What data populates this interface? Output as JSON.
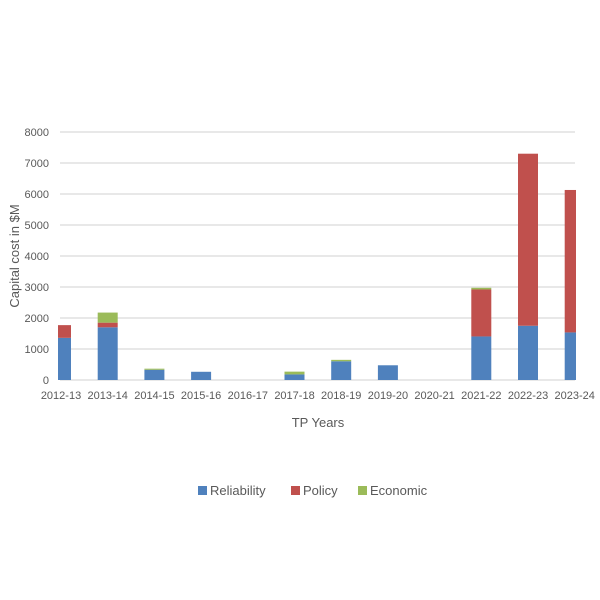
{
  "chart_data": {
    "type": "bar",
    "stacked": true,
    "title": "",
    "xlabel": "TP Years",
    "ylabel": "Capital cost in $M",
    "ylim": [
      0,
      8000
    ],
    "yticks": [
      0,
      1000,
      2000,
      3000,
      4000,
      5000,
      6000,
      7000,
      8000
    ],
    "grid": true,
    "legend_position": "bottom",
    "categories": [
      "2012-13",
      "2013-14",
      "2014-15",
      "2015-16",
      "2016-17",
      "2017-18",
      "2018-19",
      "2019-20",
      "2020-21",
      "2021-22",
      "2022-23",
      "2023-24"
    ],
    "series": [
      {
        "name": "Reliability",
        "color": "#4f81bd",
        "values": [
          1360,
          1700,
          330,
          265,
          0,
          180,
          605,
          475,
          0,
          1405,
          1750,
          1535
        ]
      },
      {
        "name": "Policy",
        "color": "#c0504d",
        "values": [
          410,
          150,
          0,
          0,
          0,
          0,
          0,
          0,
          0,
          1515,
          5550,
          4595
        ]
      },
      {
        "name": "Economic",
        "color": "#9bbb59",
        "values": [
          0,
          325,
          35,
          0,
          0,
          90,
          45,
          0,
          0,
          55,
          0,
          0
        ]
      }
    ]
  }
}
